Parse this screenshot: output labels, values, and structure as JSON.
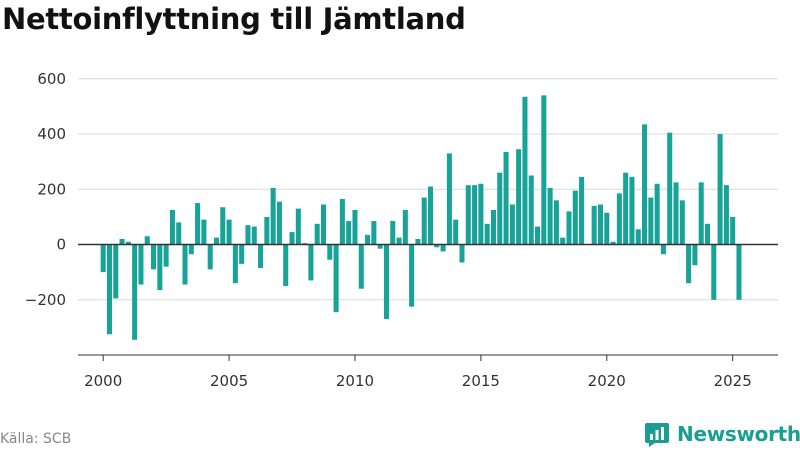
{
  "title": "Nettoinflyttning till Jämtland",
  "source": "Källa: SCB",
  "brand": {
    "name": "Newsworthy",
    "icon": "newsworthy-logo-icon",
    "color": "#1a9e94"
  },
  "colors": {
    "bar": "#17a398",
    "grid": "#d9d9d9",
    "zero_line": "#333333",
    "axis": "#333333"
  },
  "chart_data": {
    "type": "bar",
    "title": "Nettoinflyttning till Jämtland",
    "xlabel": "",
    "ylabel": "",
    "ylim": [
      -400,
      650
    ],
    "yticks": [
      -200,
      0,
      200,
      400,
      600
    ],
    "xlim": [
      1999.0,
      2026.8
    ],
    "xticks": [
      2000,
      2005,
      2010,
      2015,
      2020,
      2025
    ],
    "grid": "horizontal",
    "legend": "none",
    "x": [
      2000.0,
      2000.25,
      2000.5,
      2000.75,
      2001.0,
      2001.25,
      2001.5,
      2001.75,
      2002.0,
      2002.25,
      2002.5,
      2002.75,
      2003.0,
      2003.25,
      2003.5,
      2003.75,
      2004.0,
      2004.25,
      2004.5,
      2004.75,
      2005.0,
      2005.25,
      2005.5,
      2005.75,
      2006.0,
      2006.25,
      2006.5,
      2006.75,
      2007.0,
      2007.25,
      2007.5,
      2007.75,
      2008.0,
      2008.25,
      2008.5,
      2008.75,
      2009.0,
      2009.25,
      2009.5,
      2009.75,
      2010.0,
      2010.25,
      2010.5,
      2010.75,
      2011.0,
      2011.25,
      2011.5,
      2011.75,
      2012.0,
      2012.25,
      2012.5,
      2012.75,
      2013.0,
      2013.25,
      2013.5,
      2013.75,
      2014.0,
      2014.25,
      2014.5,
      2014.75,
      2015.0,
      2015.25,
      2015.5,
      2015.75,
      2016.0,
      2016.25,
      2016.5,
      2016.75,
      2017.0,
      2017.25,
      2017.5,
      2017.75,
      2018.0,
      2018.25,
      2018.5,
      2018.75,
      2019.0,
      2019.25,
      2019.5,
      2019.75,
      2020.0,
      2020.25,
      2020.5,
      2020.75,
      2021.0,
      2021.25,
      2021.5,
      2021.75,
      2022.0,
      2022.25,
      2022.5,
      2022.75,
      2023.0,
      2023.25,
      2023.5,
      2023.75,
      2024.0,
      2024.25,
      2024.5,
      2024.75,
      2025.0,
      2025.25
    ],
    "values": [
      -100,
      -325,
      -195,
      20,
      10,
      -345,
      -145,
      30,
      -90,
      -165,
      -80,
      125,
      80,
      -145,
      -35,
      150,
      90,
      -90,
      25,
      135,
      90,
      -140,
      -70,
      70,
      65,
      -85,
      100,
      205,
      155,
      -150,
      45,
      130,
      5,
      -130,
      75,
      145,
      -55,
      -245,
      165,
      85,
      125,
      -160,
      35,
      85,
      -15,
      -270,
      85,
      25,
      125,
      -225,
      20,
      170,
      210,
      -10,
      -25,
      330,
      90,
      -65,
      215,
      215,
      220,
      75,
      125,
      260,
      335,
      145,
      345,
      535,
      250,
      65,
      540,
      205,
      160,
      25,
      120,
      195,
      245,
      0,
      140,
      145,
      115,
      10,
      185,
      260,
      245,
      55,
      435,
      170,
      220,
      -35,
      405,
      225,
      160,
      -140,
      -75,
      225,
      75,
      -200,
      400,
      215,
      100,
      -200
    ]
  }
}
